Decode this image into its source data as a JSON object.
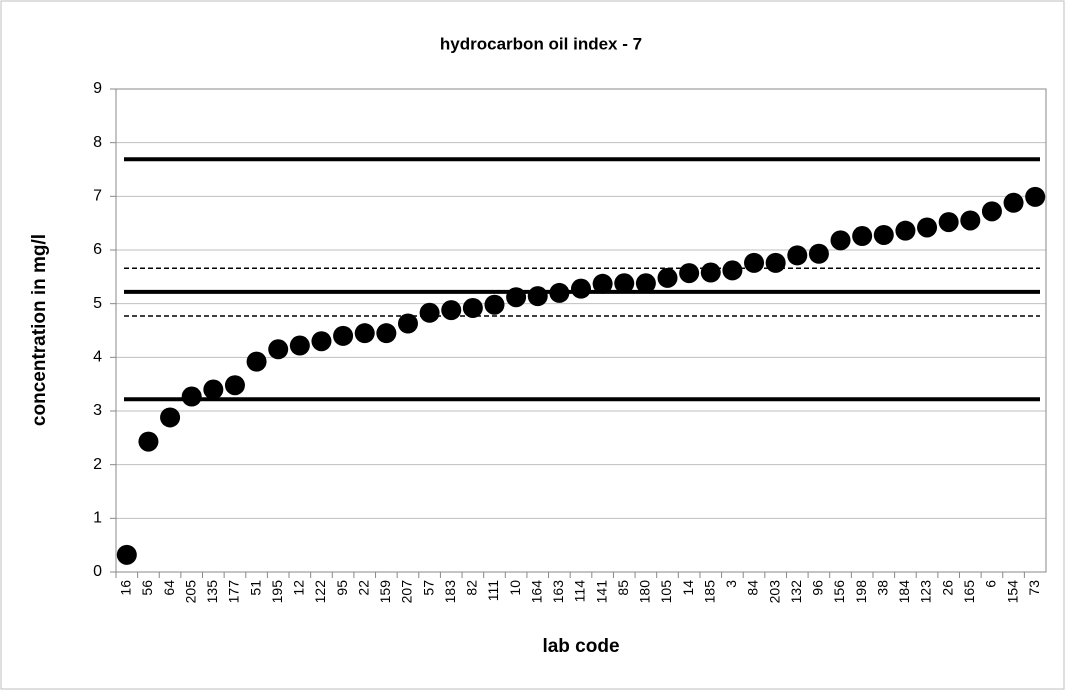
{
  "chart_data": {
    "type": "scatter",
    "title": "hydrocarbon oil index - 7",
    "x_label": "lab code",
    "y_label": "concentration in mg/l",
    "categories": [
      "16",
      "56",
      "64",
      "205",
      "135",
      "177",
      "51",
      "195",
      "12",
      "122",
      "95",
      "22",
      "159",
      "207",
      "57",
      "183",
      "82",
      "111",
      "10",
      "164",
      "163",
      "114",
      "141",
      "85",
      "180",
      "105",
      "14",
      "185",
      "3",
      "84",
      "203",
      "132",
      "96",
      "156",
      "198",
      "38",
      "184",
      "123",
      "26",
      "165",
      "6",
      "154",
      "73"
    ],
    "values": [
      0.32,
      2.43,
      2.88,
      3.27,
      3.4,
      3.48,
      3.92,
      4.15,
      4.22,
      4.3,
      4.4,
      4.45,
      4.45,
      4.63,
      4.83,
      4.88,
      4.92,
      4.98,
      5.12,
      5.14,
      5.2,
      5.28,
      5.37,
      5.38,
      5.38,
      5.48,
      5.57,
      5.58,
      5.62,
      5.76,
      5.76,
      5.9,
      5.93,
      6.18,
      6.26,
      6.28,
      6.36,
      6.42,
      6.52,
      6.55,
      6.72,
      6.88,
      6.99
    ],
    "color": "#000000",
    "ylim": [
      0,
      9
    ],
    "yticks": [
      0,
      1,
      2,
      3,
      4,
      5,
      6,
      7,
      8,
      9
    ],
    "grid": true,
    "lines": [
      {
        "value": 7.69,
        "style": "solid"
      },
      {
        "value": 5.66,
        "style": "dashed"
      },
      {
        "value": 5.22,
        "style": "solid"
      },
      {
        "value": 4.77,
        "style": "dashed"
      },
      {
        "value": 3.22,
        "style": "solid"
      }
    ]
  }
}
